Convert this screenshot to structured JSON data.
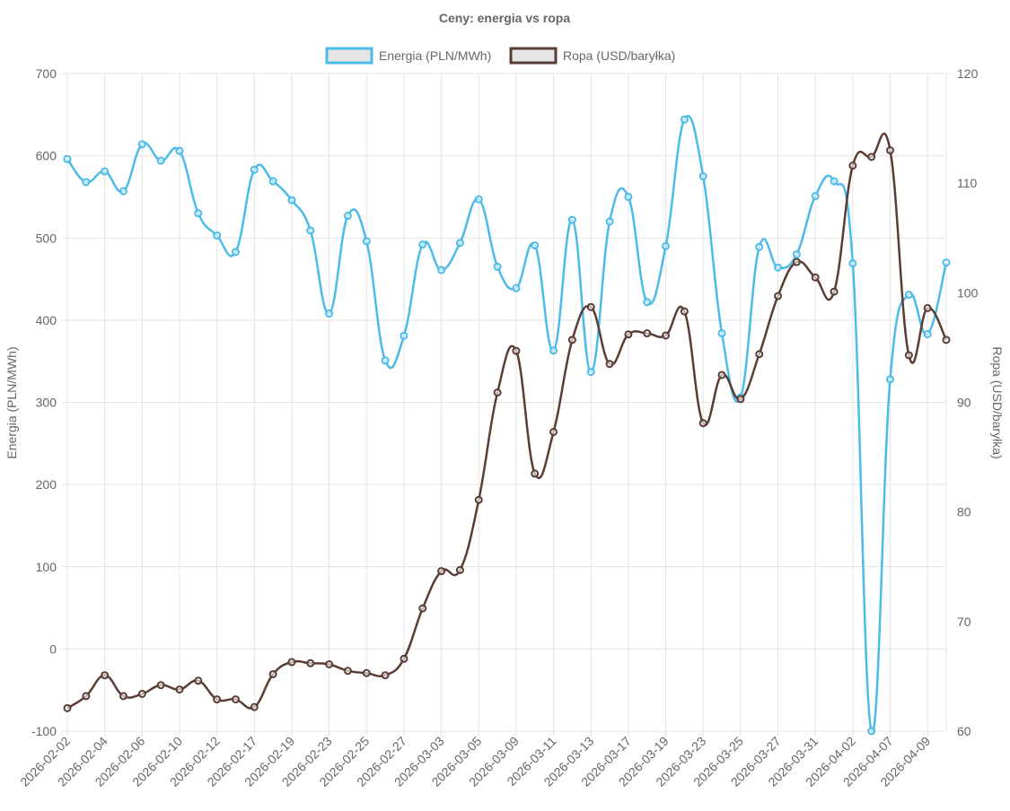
{
  "chart_data": {
    "type": "line",
    "title": "Ceny: energia vs ropa",
    "legend_position": "top",
    "grid": true,
    "x": [
      "2026-02-02",
      "2026-02-03",
      "2026-02-04",
      "2026-02-05",
      "2026-02-06",
      "2026-02-09",
      "2026-02-10",
      "2026-02-11",
      "2026-02-12",
      "2026-02-13",
      "2026-02-17",
      "2026-02-18",
      "2026-02-19",
      "2026-02-20",
      "2026-02-23",
      "2026-02-24",
      "2026-02-25",
      "2026-02-26",
      "2026-02-27",
      "2026-03-02",
      "2026-03-03",
      "2026-03-04",
      "2026-03-05",
      "2026-03-06",
      "2026-03-09",
      "2026-03-10",
      "2026-03-11",
      "2026-03-12",
      "2026-03-13",
      "2026-03-16",
      "2026-03-17",
      "2026-03-18",
      "2026-03-19",
      "2026-03-20",
      "2026-03-23",
      "2026-03-24",
      "2026-03-25",
      "2026-03-26",
      "2026-03-27",
      "2026-03-30",
      "2026-03-31",
      "2026-04-01",
      "2026-04-02",
      "2026-04-03",
      "2026-04-07",
      "2026-04-08",
      "2026-04-09",
      "2026-04-10"
    ],
    "x_tick_labels": [
      "2026-02-02",
      "2026-02-04",
      "2026-02-06",
      "2026-02-10",
      "2026-02-12",
      "2026-02-17",
      "2026-02-19",
      "2026-02-23",
      "2026-02-25",
      "2026-02-27",
      "2026-03-03",
      "2026-03-05",
      "2026-03-09",
      "2026-03-11",
      "2026-03-13",
      "2026-03-17",
      "2026-03-19",
      "2026-03-23",
      "2026-03-25",
      "2026-03-27",
      "2026-03-31",
      "2026-04-02",
      "2026-04-07",
      "2026-04-09"
    ],
    "series": [
      {
        "name": "Energia (PLN/MWh)",
        "axis": "left",
        "color": "#4dbbe9",
        "values": [
          596,
          568,
          581,
          557,
          614,
          594,
          606,
          530,
          503,
          483,
          583,
          569,
          546,
          509,
          408,
          527,
          496,
          351,
          381,
          492,
          461,
          494,
          547,
          465,
          439,
          491,
          363,
          522,
          337,
          520,
          550,
          422,
          490,
          644,
          575,
          384,
          306,
          489,
          464,
          480,
          551,
          569,
          469,
          -100,
          328,
          431,
          383,
          470
        ]
      },
      {
        "name": "Ropa (USD/baryłka)",
        "axis": "right",
        "color": "#5a3d35",
        "values": [
          62.1,
          63.2,
          65.1,
          63.2,
          63.4,
          64.2,
          63.8,
          64.6,
          62.9,
          62.9,
          62.2,
          65.2,
          66.3,
          66.2,
          66.1,
          65.5,
          65.3,
          65.1,
          66.6,
          71.2,
          74.6,
          74.7,
          81.1,
          90.9,
          94.7,
          83.5,
          87.3,
          95.7,
          98.7,
          93.5,
          96.2,
          96.3,
          96.1,
          98.3,
          88.1,
          92.5,
          90.3,
          94.4,
          99.7,
          102.8,
          101.4,
          100.1,
          111.6,
          112.4,
          113.0,
          94.3,
          98.6,
          95.7
        ]
      }
    ],
    "y_left": {
      "label": "Energia (PLN/MWh)",
      "ylim": [
        -100,
        700
      ],
      "ticks": [
        -100,
        0,
        100,
        200,
        300,
        400,
        500,
        600,
        700
      ]
    },
    "y_right": {
      "label": "Ropa (USD/baryłka)",
      "ylim": [
        60,
        120
      ],
      "ticks": [
        60,
        70,
        80,
        90,
        100,
        110,
        120
      ]
    }
  }
}
